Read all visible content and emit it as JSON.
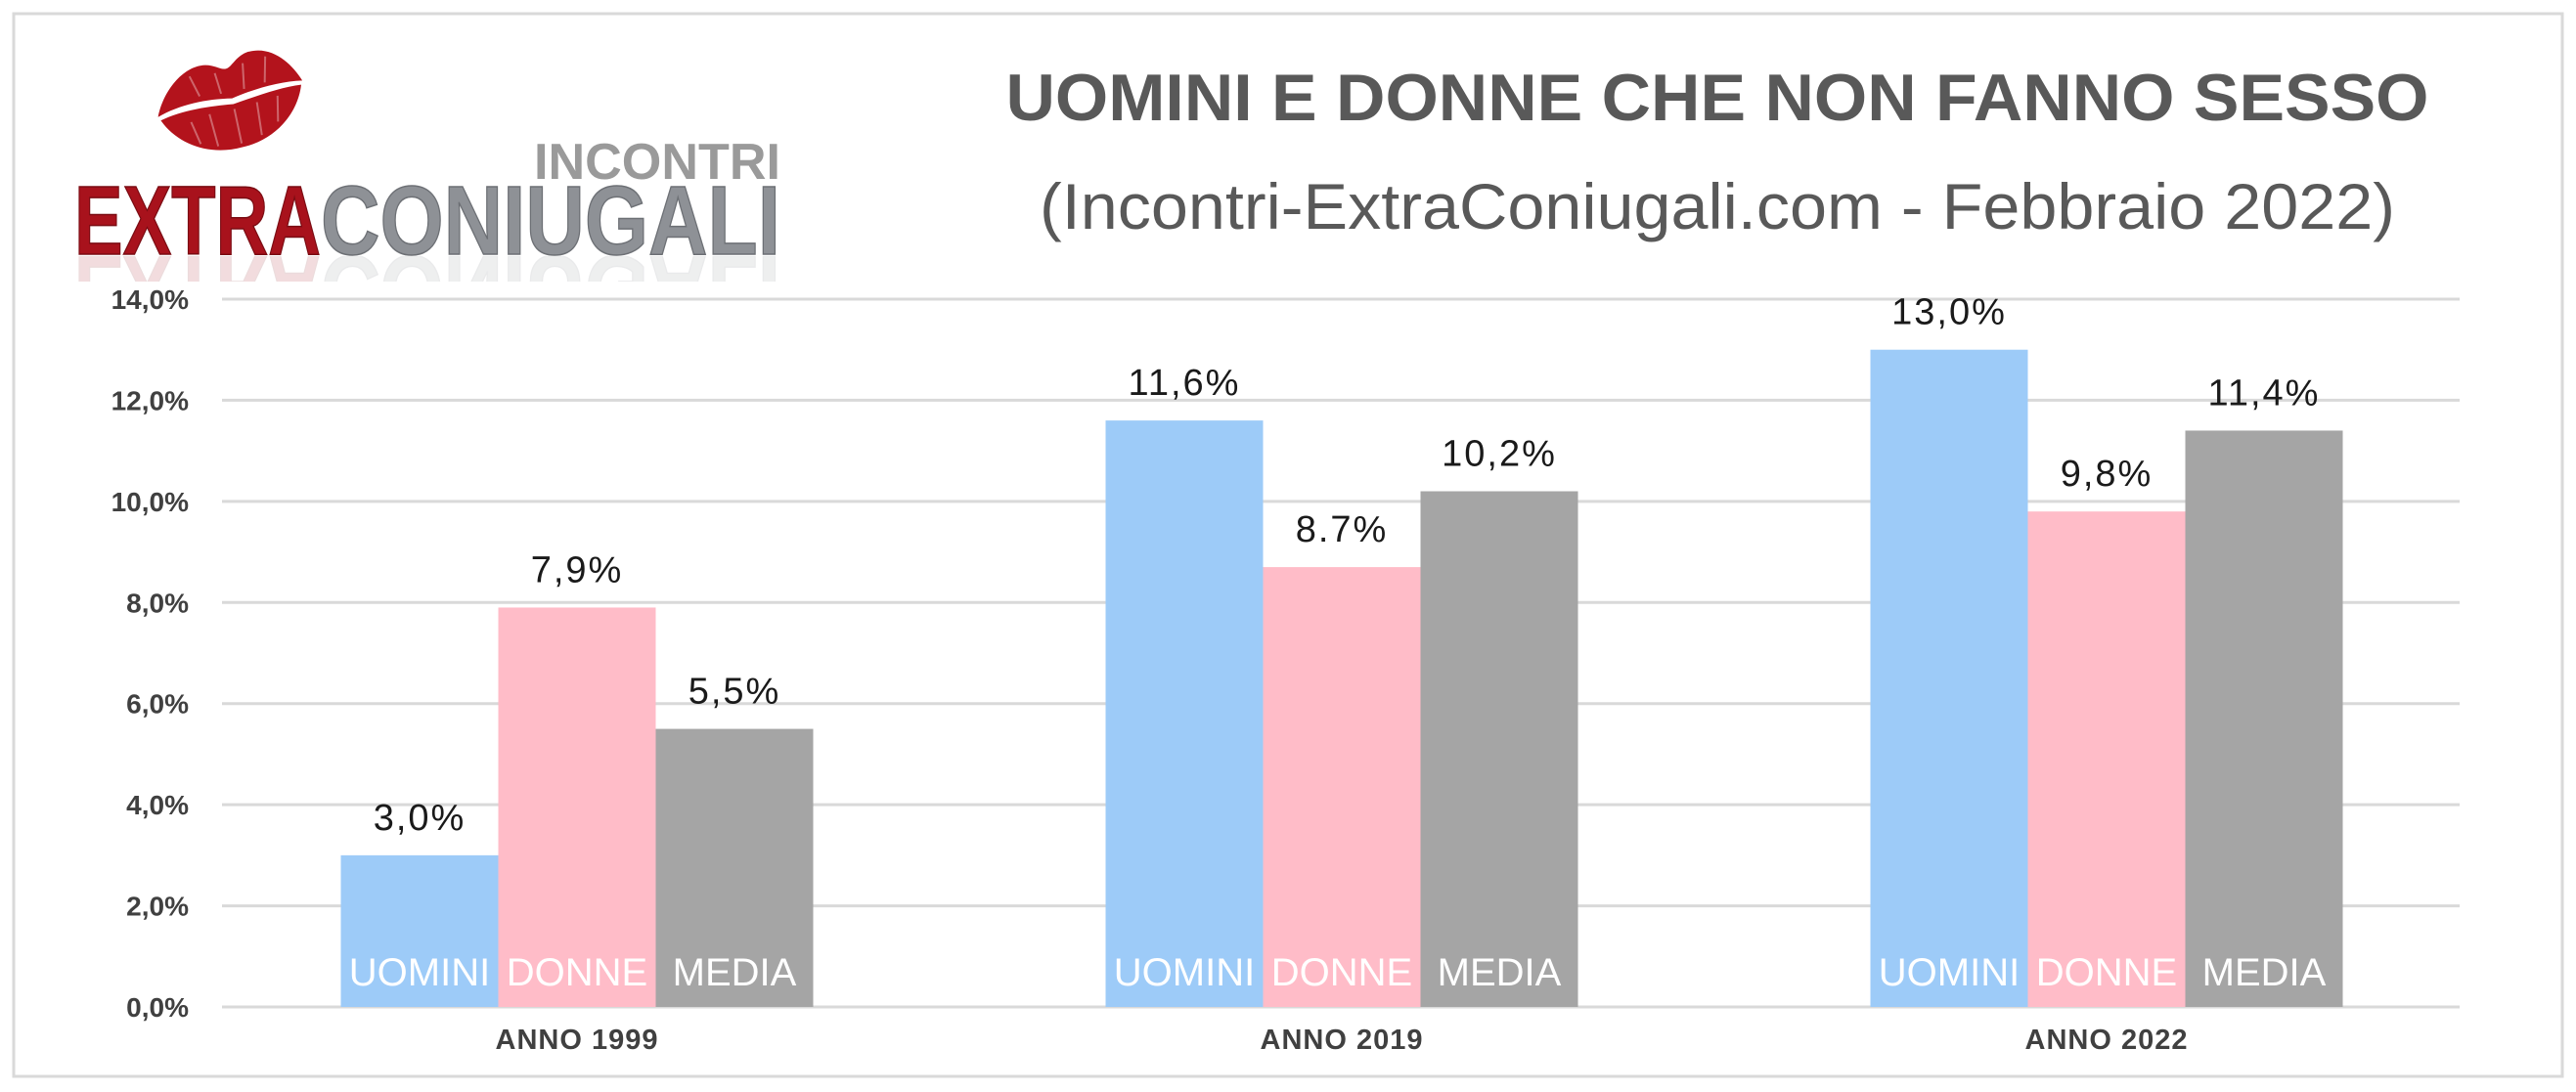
{
  "logo": {
    "top_text": "INCONTRI",
    "brand_red_text": "EXTRA",
    "brand_gray_text": "CONIUGALI",
    "lips_color": "#B3131C",
    "red_color": "#A8121C",
    "gray_color": "#8E9196",
    "icon": "lips-icon"
  },
  "colors": {
    "title": "#595959"
  },
  "chart_data": {
    "type": "bar",
    "title": "UOMINI E DONNE CHE NON FANNO SESSO",
    "subtitle": "(Incontri-ExtraConiugali.com - Febbraio 2022)",
    "xlabel": "",
    "ylabel": "",
    "categories": [
      "ANNO 1999",
      "ANNO 2019",
      "ANNO 2022"
    ],
    "series": [
      {
        "name": "UOMINI",
        "values": [
          3.0,
          11.6,
          13.0
        ],
        "labels": [
          "3,0%",
          "11,6%",
          "13,0%"
        ],
        "color": "#9DCBF8"
      },
      {
        "name": "DONNE",
        "values": [
          7.9,
          8.7,
          9.8
        ],
        "labels": [
          "7,9%",
          "8.7%",
          "9,8%"
        ],
        "color": "#FFBCC8"
      },
      {
        "name": "MEDIA",
        "values": [
          5.5,
          10.2,
          11.4
        ],
        "labels": [
          "5,5%",
          "10,2%",
          "11,4%"
        ],
        "color": "#A5A5A5"
      }
    ],
    "ylim": [
      0,
      14
    ],
    "yticks": [
      0,
      2,
      4,
      6,
      8,
      10,
      12,
      14
    ],
    "ytick_labels": [
      "0,0%",
      "2,0%",
      "4,0%",
      "6,0%",
      "8,0%",
      "10,0%",
      "12,0%",
      "14,0%"
    ],
    "grid": true,
    "legend": "inside-bars-bottom"
  }
}
